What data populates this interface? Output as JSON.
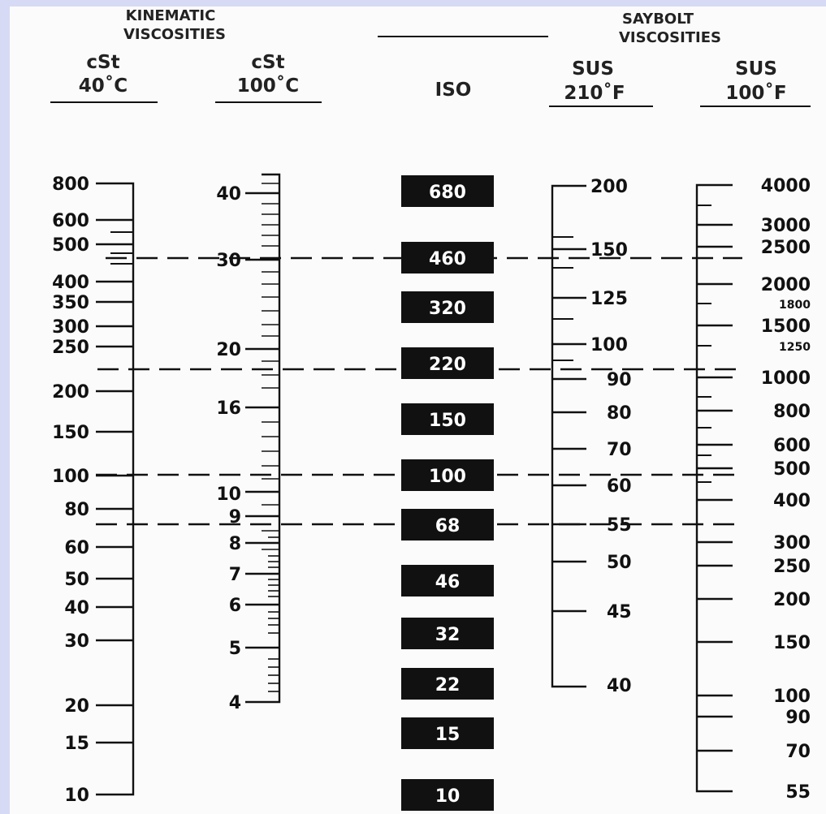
{
  "headers": {
    "kinematic_group": [
      "KINEMATIC",
      "VISCOSITIES"
    ],
    "saybolt_group": [
      "SAYBOLT",
      "VISCOSITIES"
    ],
    "col_cst40": [
      "cSt",
      "40˚C"
    ],
    "col_cst100": [
      "cSt",
      "100˚C"
    ],
    "col_iso": [
      "ISO"
    ],
    "col_sus210": [
      "SUS",
      "210˚F"
    ],
    "col_sus100": [
      "SUS",
      "100˚F"
    ]
  },
  "scales": {
    "cst40": [
      "800",
      "600",
      "500",
      "400",
      "350",
      "300",
      "250",
      "200",
      "150",
      "100",
      "80",
      "60",
      "50",
      "40",
      "30",
      "20",
      "15",
      "10"
    ],
    "cst100": [
      "40",
      "30",
      "20",
      "16",
      "10",
      "9",
      "8",
      "7",
      "6",
      "5",
      "4"
    ],
    "iso": [
      "680",
      "460",
      "320",
      "220",
      "150",
      "100",
      "68",
      "46",
      "32",
      "22",
      "15",
      "10"
    ],
    "sus210": [
      "200",
      "150",
      "125",
      "100",
      "90",
      "80",
      "70",
      "60",
      "55",
      "50",
      "45",
      "40"
    ],
    "sus100_major": [
      "4000",
      "3000",
      "2500",
      "2000",
      "1500",
      "1000",
      "800",
      "600",
      "500",
      "400",
      "300",
      "250",
      "200",
      "150",
      "100",
      "90",
      "70",
      "55"
    ],
    "sus100_minor": [
      "1800",
      "1250"
    ]
  },
  "colors": {
    "page_border": "#d6daf5",
    "background": "#fbfbfb",
    "ink": "#111111",
    "iso_box": "#111111",
    "iso_text": "#ffffff"
  }
}
